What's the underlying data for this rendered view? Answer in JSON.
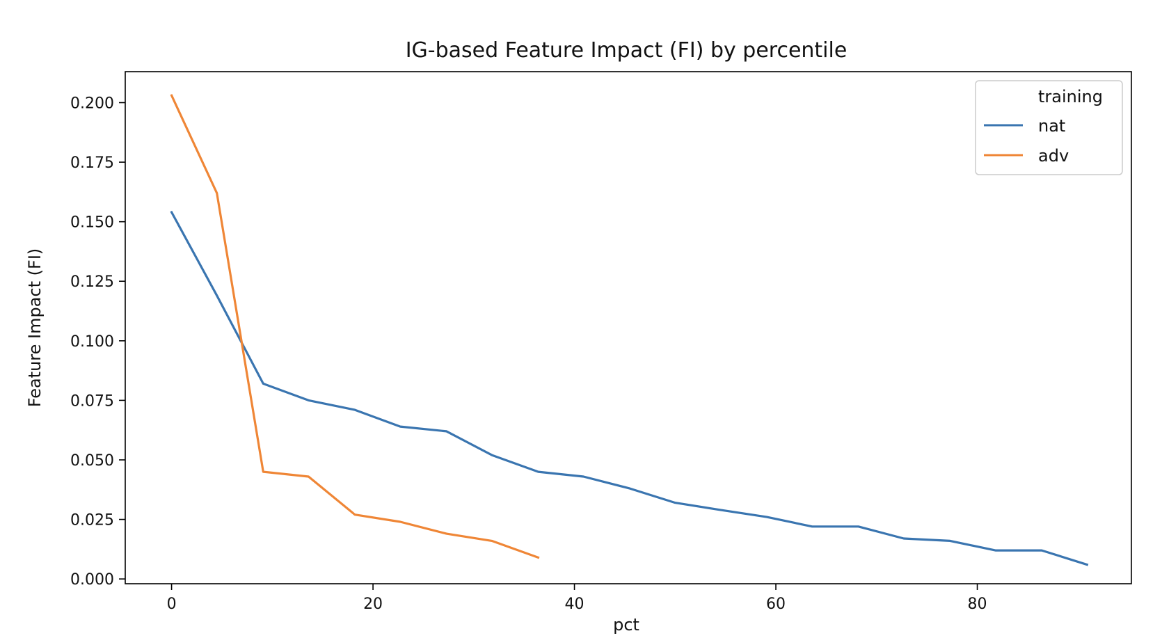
{
  "chart_data": {
    "type": "line",
    "title": "IG-based Feature Impact (FI) by percentile",
    "xlabel": "pct",
    "ylabel": "Feature Impact (FI)",
    "xlim": [
      -4.6,
      95.3
    ],
    "ylim": [
      -0.002,
      0.213
    ],
    "xticks": [
      0,
      20,
      40,
      60,
      80
    ],
    "yticks": [
      0.0,
      0.025,
      0.05,
      0.075,
      0.1,
      0.125,
      0.15,
      0.175,
      0.2
    ],
    "ytick_labels": [
      "0.000",
      "0.025",
      "0.050",
      "0.075",
      "0.100",
      "0.125",
      "0.150",
      "0.175",
      "0.200"
    ],
    "grid": false,
    "legend": {
      "title": "training",
      "placement": "top-right"
    },
    "series": [
      {
        "name": "nat",
        "color": "#3a75b0",
        "x": [
          0,
          4.5,
          9.1,
          13.6,
          18.2,
          22.7,
          27.3,
          31.8,
          36.4,
          40.9,
          45.5,
          50.0,
          54.5,
          59.1,
          63.6,
          68.2,
          72.7,
          77.3,
          81.8,
          86.4,
          90.9
        ],
        "y": [
          0.154,
          0.119,
          0.082,
          0.075,
          0.071,
          0.064,
          0.062,
          0.052,
          0.045,
          0.043,
          0.038,
          0.032,
          0.029,
          0.026,
          0.022,
          0.022,
          0.017,
          0.016,
          0.012,
          0.012,
          0.006
        ]
      },
      {
        "name": "adv",
        "color": "#ef8636",
        "x": [
          0,
          4.5,
          9.1,
          13.6,
          18.2,
          22.7,
          27.3,
          31.8,
          36.4
        ],
        "y": [
          0.203,
          0.162,
          0.045,
          0.043,
          0.027,
          0.024,
          0.019,
          0.016,
          0.009
        ]
      }
    ]
  }
}
